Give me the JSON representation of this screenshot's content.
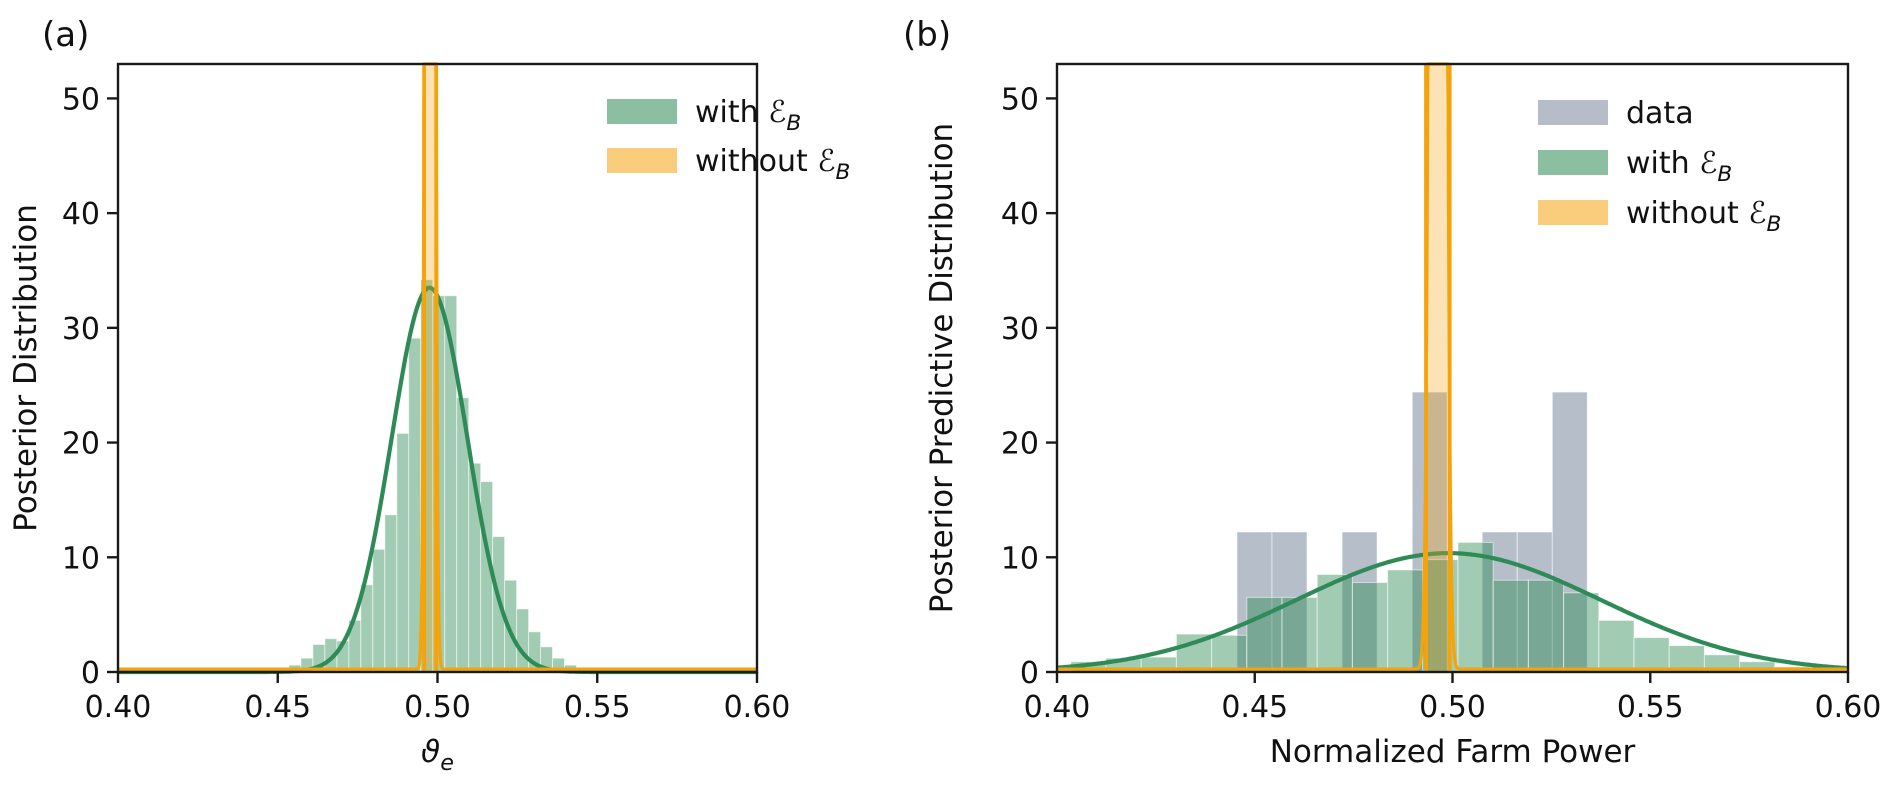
{
  "figure": {
    "background": "#ffffff"
  },
  "chart_data": {
    "type": "bar",
    "subtype": "histogram+kde",
    "colors": {
      "green_line": "#2e8b57",
      "green_fill": "rgba(46,139,87,0.45)",
      "gray_fill": "rgba(122,136,158,0.55)",
      "orange": "#f5a30b",
      "orange_fill": "rgba(245,163,11,0.30)",
      "axis": "#1a1a1a",
      "legend_green": "#8cbfa2",
      "legend_orange": "#f9cd7c",
      "legend_gray": "#b6bdc9"
    },
    "panels": [
      {
        "id": "a",
        "tag": "(a)",
        "ylabel": "Posterior Distribution",
        "xlabel_parts": [
          {
            "text": "ϑ",
            "italic": true
          },
          {
            "text": "e",
            "italic": true,
            "sub": true
          }
        ],
        "xlim": [
          0.4,
          0.6
        ],
        "ylim": [
          0,
          53
        ],
        "xtick_values": [
          0.4,
          0.45,
          0.5,
          0.55,
          0.6
        ],
        "xtick_labels": [
          "0.40",
          "0.45",
          "0.50",
          "0.55",
          "0.60"
        ],
        "ytick_values": [
          0,
          10,
          20,
          30,
          40,
          50
        ],
        "ytick_labels": [
          "0",
          "10",
          "20",
          "30",
          "40",
          "50"
        ],
        "green_hist": {
          "bin_start": 0.4535,
          "bin_width": 0.00375,
          "heights": [
            0.6,
            1.2,
            2.4,
            2.9,
            2.7,
            4.5,
            7.6,
            10.7,
            13.7,
            20.8,
            29.1,
            34.2,
            32.8,
            32.8,
            23.9,
            18.2,
            16.6,
            11.8,
            8.0,
            5.5,
            3.5,
            2.2,
            1.2,
            0.6
          ]
        },
        "green_kde": {
          "mean": 0.4975,
          "sigma": 0.0119,
          "peak": 33.5
        },
        "orange_spike": {
          "x1": 0.4958,
          "x2": 0.4996,
          "kde_mean": 0.4977,
          "kde_sigma": 0.0009,
          "base": 0.25
        },
        "legend": {
          "items": [
            {
              "swatch": "#8cbfa2",
              "parts": [
                {
                  "text": "with "
                },
                {
                  "text": "ℰ",
                  "italic": true
                },
                {
                  "text": "B",
                  "italic": true,
                  "sub": true
                }
              ]
            },
            {
              "swatch": "#f9cd7c",
              "parts": [
                {
                  "text": "without "
                },
                {
                  "text": "ℰ",
                  "italic": true
                },
                {
                  "text": "B",
                  "italic": true,
                  "sub": true
                }
              ]
            }
          ]
        }
      },
      {
        "id": "b",
        "tag": "(b)",
        "ylabel": "Posterior Predictive Distribution",
        "xlabel_parts": [
          {
            "text": "Normalized Farm Power"
          }
        ],
        "xlim": [
          0.4,
          0.6
        ],
        "ylim": [
          0,
          53
        ],
        "xtick_values": [
          0.4,
          0.45,
          0.5,
          0.55,
          0.6
        ],
        "xtick_labels": [
          "0.40",
          "0.45",
          "0.50",
          "0.55",
          "0.60"
        ],
        "ytick_values": [
          0,
          10,
          20,
          30,
          40,
          50
        ],
        "ytick_labels": [
          "0",
          "10",
          "20",
          "30",
          "40",
          "50"
        ],
        "gray_hist": {
          "bin_start": 0.4455,
          "bin_width": 0.00886,
          "heights": [
            12.2,
            12.2,
            0,
            12.2,
            0,
            24.4,
            0,
            12.2,
            12.2,
            24.4
          ]
        },
        "green_hist": {
          "bin_start": 0.4035,
          "bin_width": 0.0089,
          "heights": [
            0.9,
            1.2,
            1.3,
            3.3,
            3.2,
            6.5,
            6.5,
            8.5,
            7.8,
            8.9,
            9.8,
            11.3,
            8.0,
            8.0,
            6.9,
            4.5,
            3.0,
            2.3,
            1.5,
            0.9,
            0.45
          ]
        },
        "green_kde": {
          "mean": 0.499,
          "sigma": 0.0385,
          "peak": 10.36
        },
        "orange_spike": {
          "x1": 0.4933,
          "x2": 0.4993,
          "kde_mean": 0.4963,
          "kde_sigma": 0.0012,
          "base": 0.25
        },
        "legend": {
          "items": [
            {
              "swatch": "#b6bdc9",
              "parts": [
                {
                  "text": "data"
                }
              ]
            },
            {
              "swatch": "#8cbfa2",
              "parts": [
                {
                  "text": "with "
                },
                {
                  "text": "ℰ",
                  "italic": true
                },
                {
                  "text": "B",
                  "italic": true,
                  "sub": true
                }
              ]
            },
            {
              "swatch": "#f9cd7c",
              "parts": [
                {
                  "text": "without "
                },
                {
                  "text": "ℰ",
                  "italic": true
                },
                {
                  "text": "B",
                  "italic": true,
                  "sub": true
                }
              ]
            }
          ]
        }
      }
    ]
  }
}
